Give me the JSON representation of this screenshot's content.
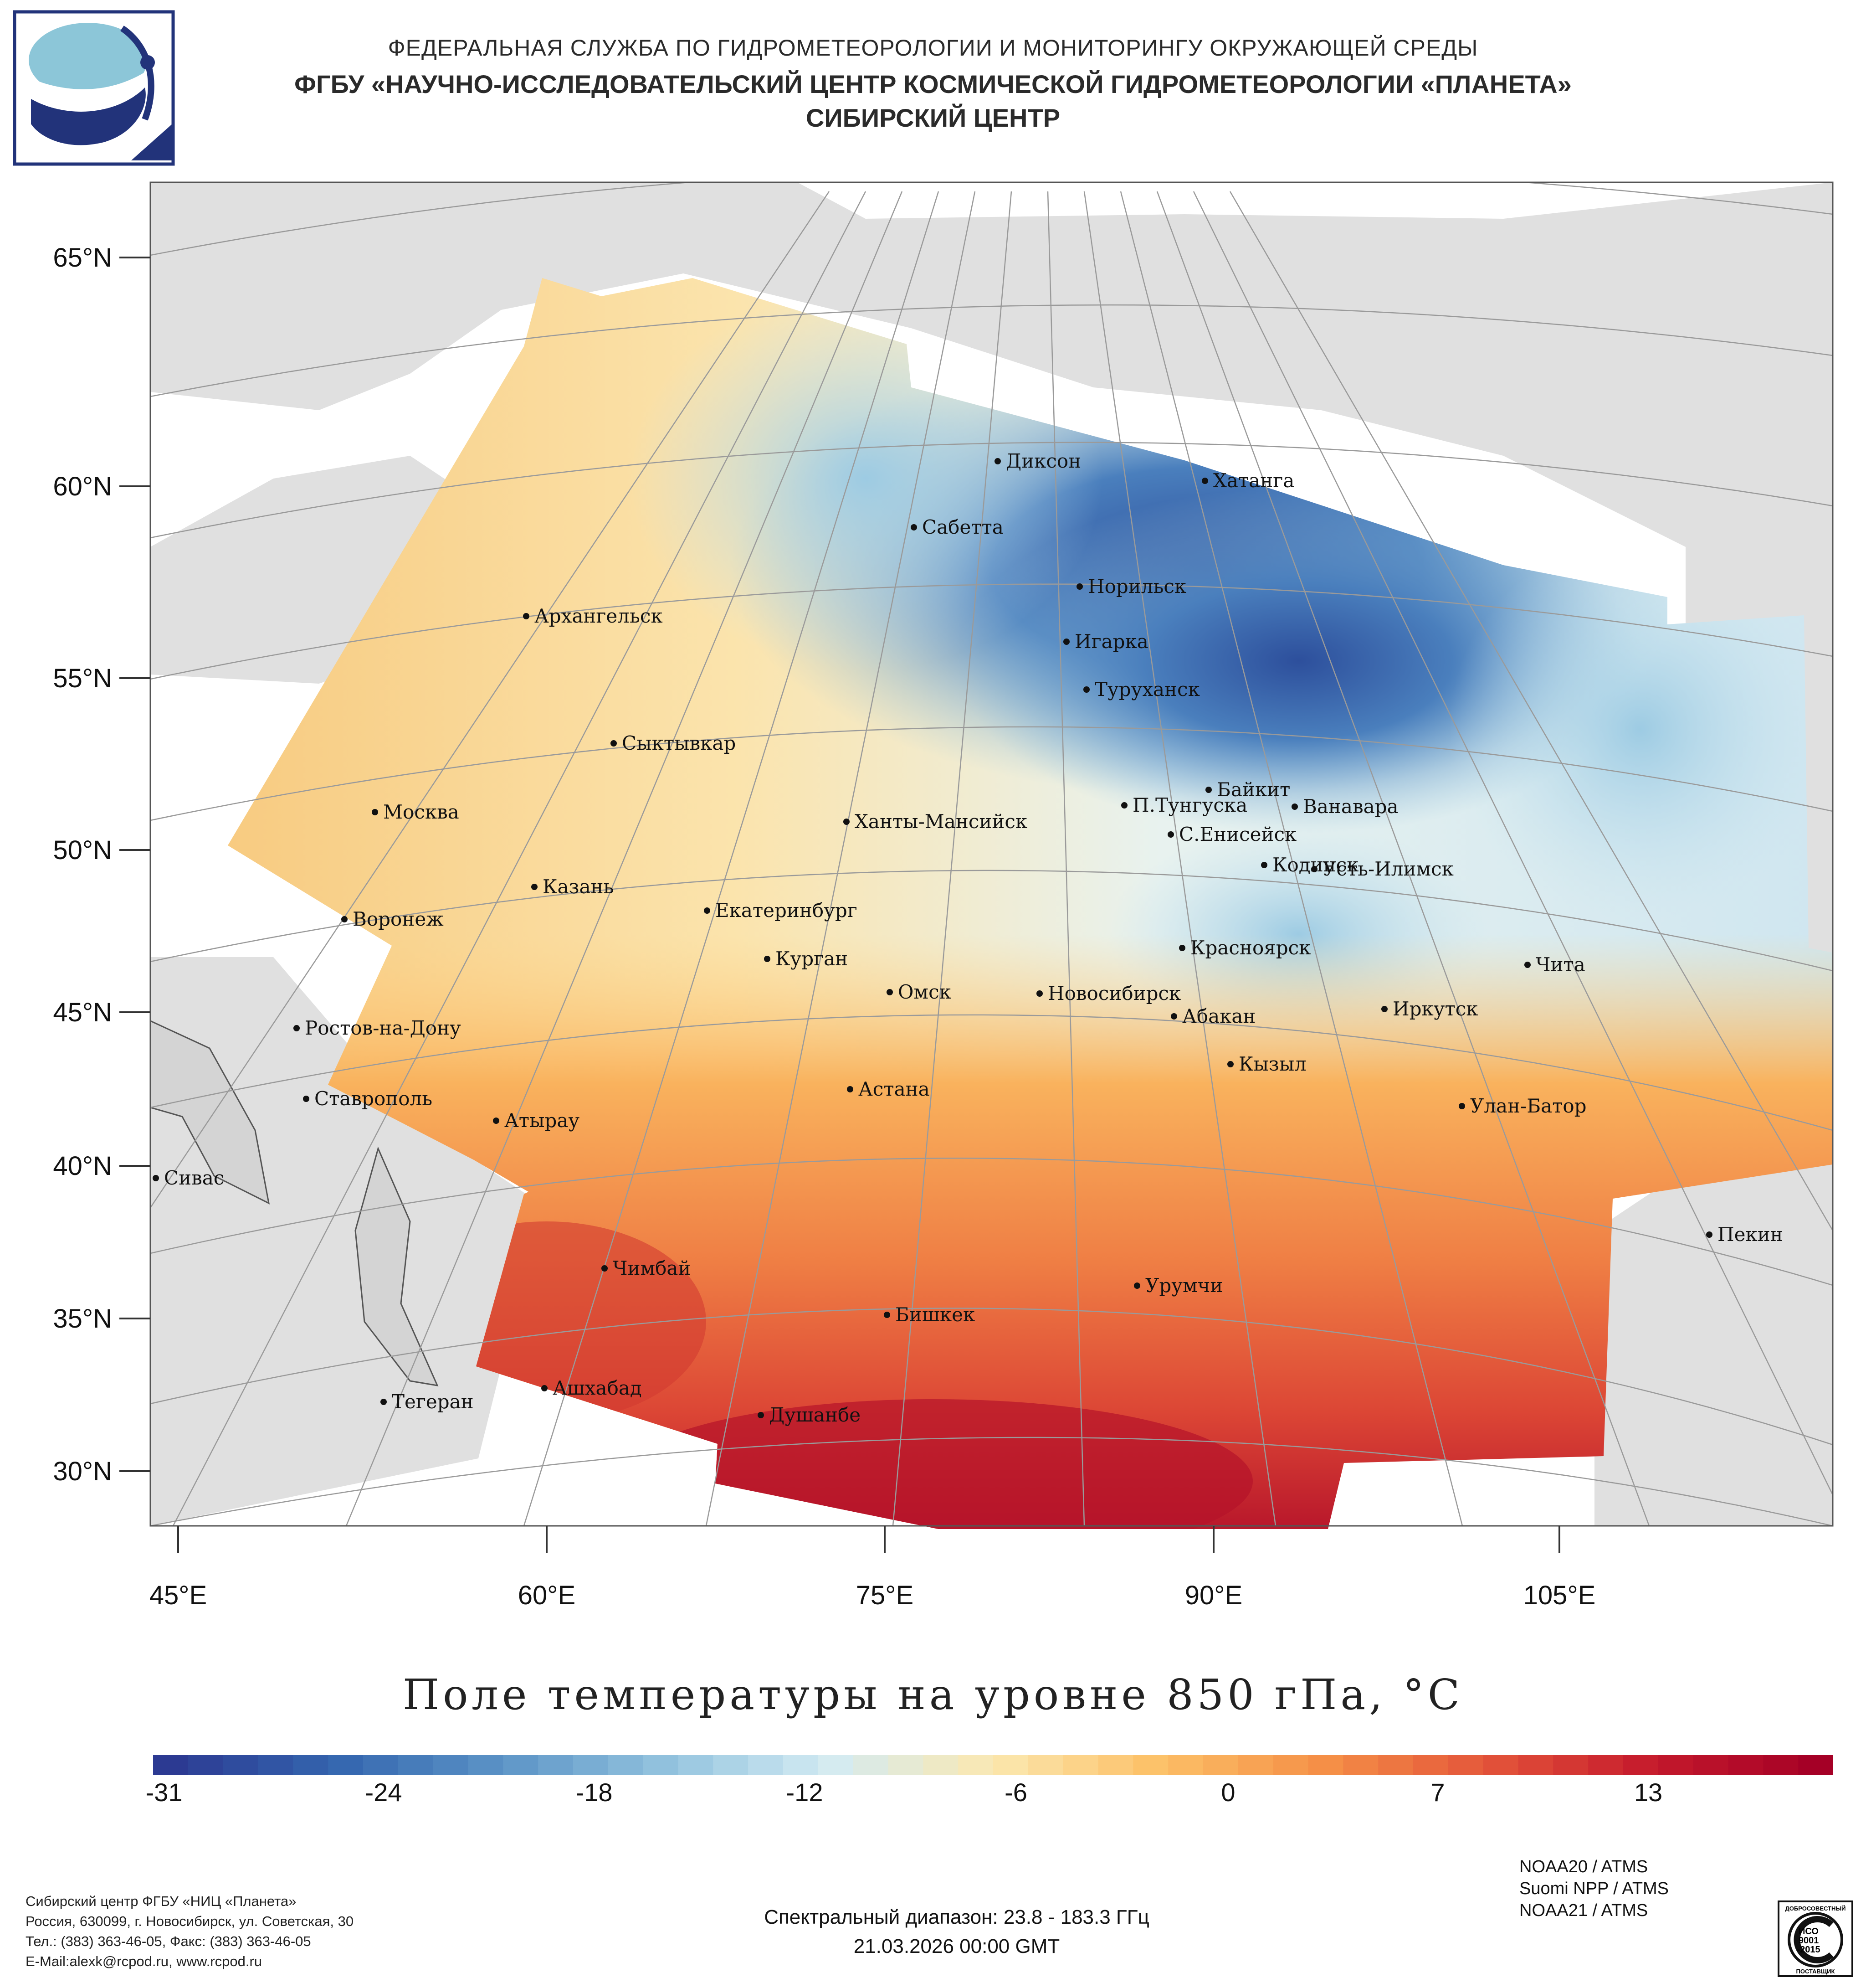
{
  "header": {
    "line1": "ФЕДЕРАЛЬНАЯ СЛУЖБА ПО ГИДРОМЕТЕОРОЛОГИИ И МОНИТОРИНГУ ОКРУЖАЮЩЕЙ СРЕДЫ",
    "line2": "ФГБУ «НАУЧНО-ИССЛЕДОВАТЕЛЬСКИЙ ЦЕНТР КОСМИЧЕСКОЙ ГИДРОМЕТЕОРОЛОГИИ «ПЛАНЕТА»",
    "line3": "СИБИРСКИЙ ЦЕНТР"
  },
  "map": {
    "lat_labels": [
      "65°N",
      "60°N",
      "55°N",
      "50°N",
      "45°N",
      "40°N",
      "35°N",
      "30°N"
    ],
    "lon_labels": [
      "45°E",
      "60°E",
      "75°E",
      "90°E",
      "105°E"
    ],
    "cities": [
      "Диксон",
      "Хатанга",
      "Сабетта",
      "Норильск",
      "Архангельск",
      "Игарка",
      "Туруханск",
      "Сыктывкар",
      "Байкит",
      "Москва",
      "Ханты-Мансийск",
      "П.Тунгуска",
      "Ванавара",
      "С.Енисейск",
      "Кодинск",
      "Усть-Илимск",
      "Казань",
      "Екатеринбург",
      "Воронеж",
      "Красноярск",
      "Курган",
      "Чита",
      "Омск",
      "Новосибирск",
      "Иркутск",
      "Ростов-на-Дону",
      "Абакан",
      "Кызыл",
      "Ставрополь",
      "Астана",
      "Улан-Батор",
      "Атырау",
      "Сивас",
      "Пекин",
      "Чимбай",
      "Урумчи",
      "Бишкек",
      "Ашхабад",
      "Тегеран",
      "Душанбе"
    ],
    "colors": {
      "land": "#e0e0e0",
      "ocean": "#ffffff",
      "cold": "#2f5aa6",
      "warm": "#c9182a"
    }
  },
  "title": "Поле температуры на уровне 850 гПа, °C",
  "colorbar": {
    "ticks": [
      "-31",
      "-24",
      "-18",
      "-12",
      "-6",
      "0",
      "7",
      "13"
    ],
    "range": [
      -31,
      17
    ],
    "colors": [
      "#2c3a92",
      "#3465ae",
      "#5b93c6",
      "#92c2de",
      "#d3ebf3",
      "#fbe8b0",
      "#fcc067",
      "#f59047",
      "#e4553a",
      "#c51a2c",
      "#a50026"
    ]
  },
  "satellites": [
    "NOAA20 / ATMS",
    "Suomi NPP / ATMS",
    "NOAA21 / ATMS"
  ],
  "organization": {
    "line1": "Сибирский центр ФГБУ «НИЦ «Планета»",
    "line2": "Россия, 630099, г. Новосибирск, ул. Советская, 30",
    "line3": "Тел.: (383) 363-46-05, Факс: (383) 363-46-05",
    "line4": "E-Mail:alexk@rcpod.ru, www.rcpod.ru"
  },
  "spectral": "Спектральный диапазон: 23.8 - 183.3 ГГц",
  "datetime": "21.03.2026 00:00 GMT",
  "iso_badge": {
    "top": "ДОБРОСОВЕСТНЫЙ",
    "mid1": "ИСО",
    "mid2": "9001",
    "mid3": "-2015",
    "bottom": "ПОСТАВЩИК"
  }
}
